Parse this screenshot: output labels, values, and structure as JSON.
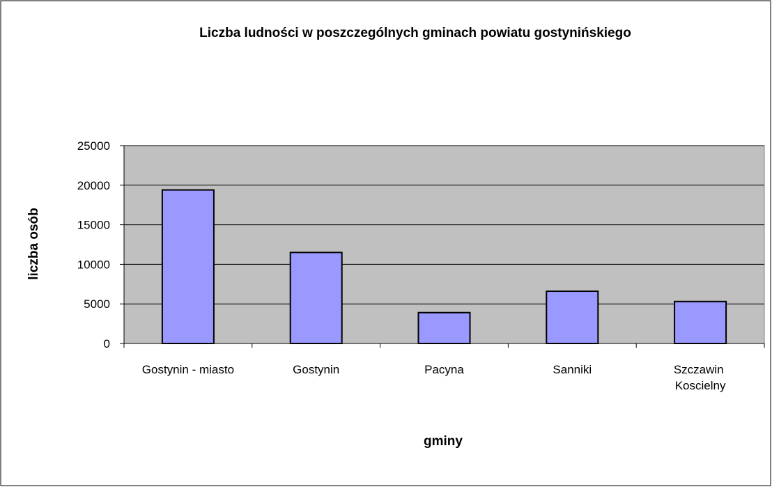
{
  "chart_data": {
    "type": "bar",
    "title": "Liczba ludności w poszczególnych gminach powiatu gostynińskiego",
    "xlabel": "gminy",
    "ylabel": "liczba osób",
    "categories": [
      "Gostynin - miasto",
      "Gostynin",
      "Pacyna",
      "Sanniki",
      "Szczawin Koscielny"
    ],
    "values": [
      19400,
      11500,
      3900,
      6600,
      5300
    ],
    "color": "#9999ff",
    "plot_background": "#c0c0c0",
    "ylim": [
      0,
      25000
    ],
    "yticks": [
      0,
      5000,
      10000,
      15000,
      20000,
      25000
    ],
    "grid": true
  }
}
